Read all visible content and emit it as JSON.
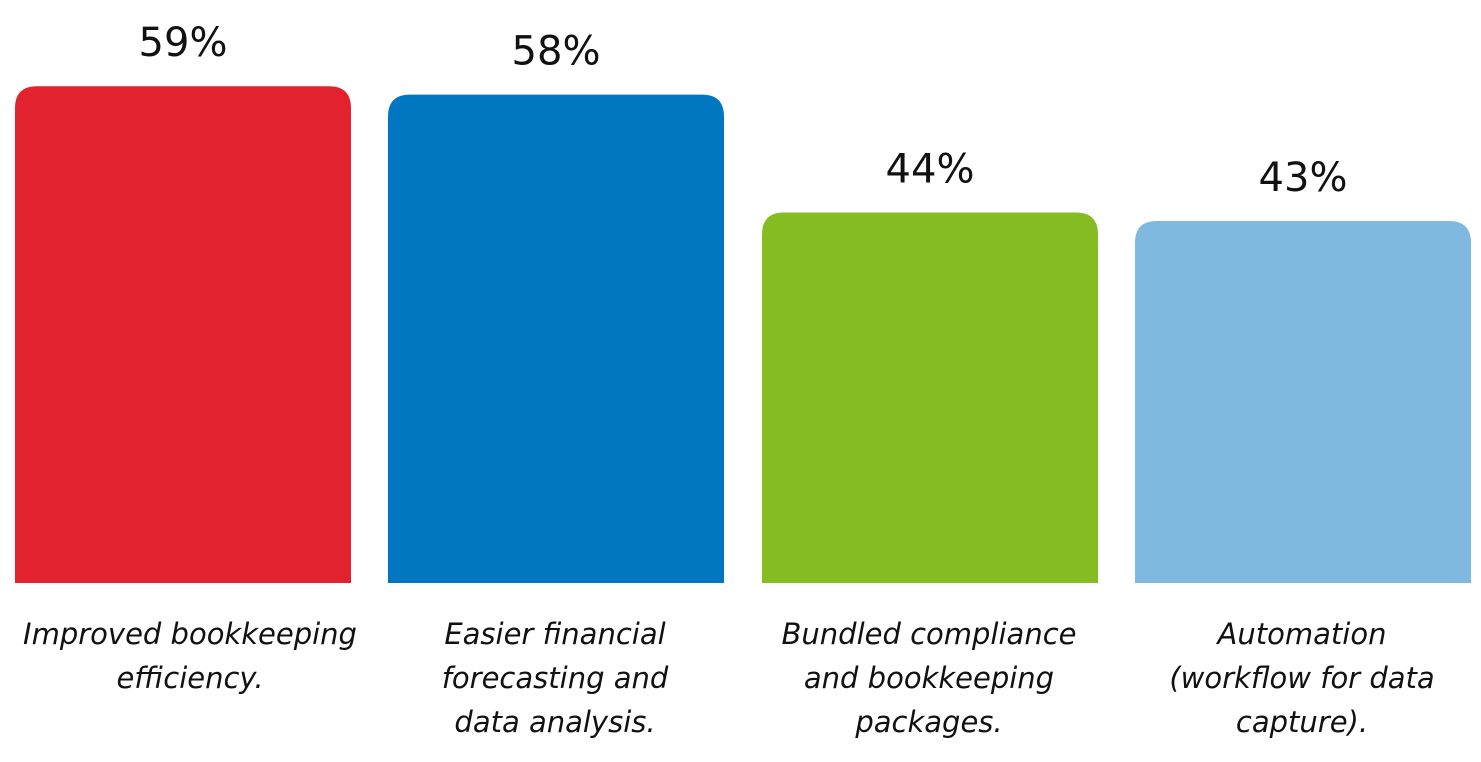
{
  "chart_data": {
    "type": "bar",
    "categories": [
      "Improved bookkeeping\nefficiency.",
      "Easier financial\nforecasting and\ndata analysis.",
      "Bundled compliance\nand bookkeeping\npackages.",
      "Automation\n(workflow for data\ncapture)."
    ],
    "values": [
      59,
      58,
      44,
      43
    ],
    "value_labels": [
      "59%",
      "58%",
      "44%",
      "43%"
    ],
    "colors": [
      "#e32230",
      "#0077c0",
      "#84bc22",
      "#80b9df"
    ],
    "title": "",
    "xlabel": "",
    "ylabel": "",
    "grid": false,
    "legend": "none"
  }
}
